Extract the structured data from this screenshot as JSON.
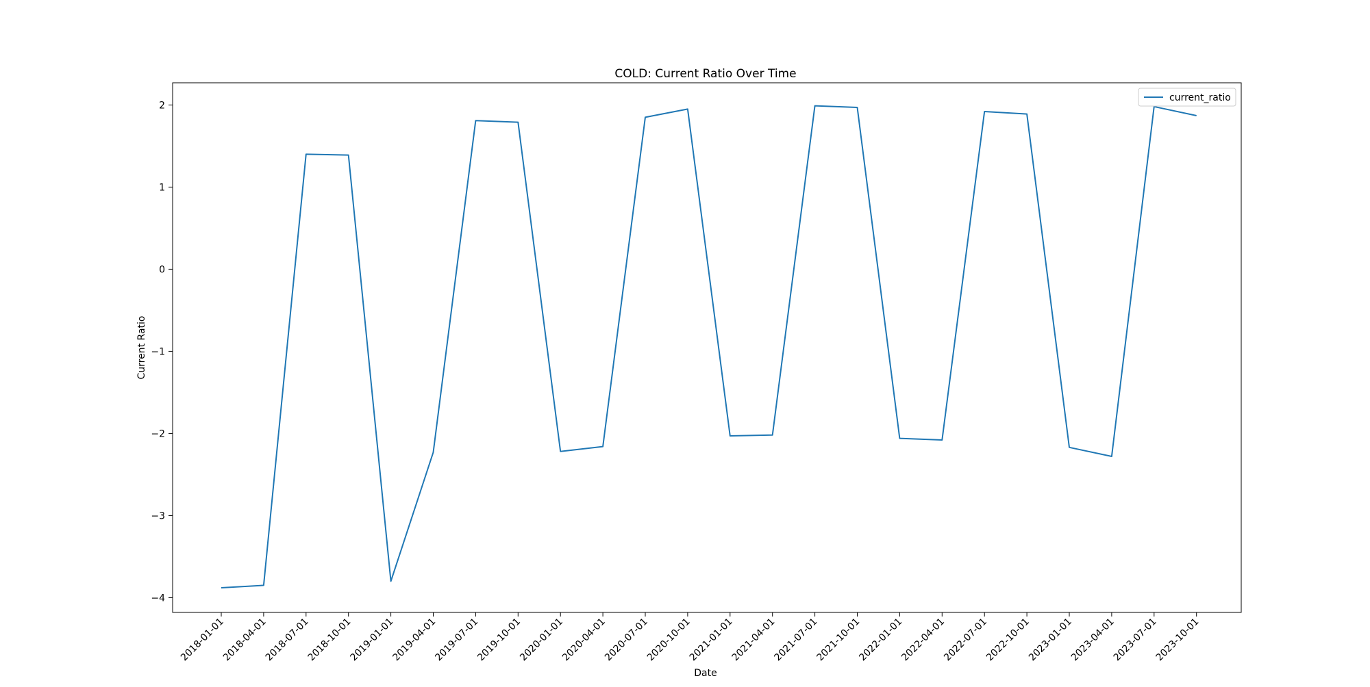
{
  "chart_data": {
    "type": "line",
    "title": "COLD: Current Ratio Over Time",
    "xlabel": "Date",
    "ylabel": "Current Ratio",
    "x": [
      "2018-01-01",
      "2018-04-01",
      "2018-07-01",
      "2018-10-01",
      "2019-01-01",
      "2019-04-01",
      "2019-07-01",
      "2019-10-01",
      "2020-01-01",
      "2020-04-01",
      "2020-07-01",
      "2020-10-01",
      "2021-01-01",
      "2021-04-01",
      "2021-07-01",
      "2021-10-01",
      "2022-01-01",
      "2022-04-01",
      "2022-07-01",
      "2022-10-01",
      "2023-01-01",
      "2023-04-01",
      "2023-07-01",
      "2023-10-01"
    ],
    "series": [
      {
        "name": "current_ratio",
        "color": "#1f77b4",
        "values": [
          -3.88,
          -3.85,
          1.4,
          1.39,
          -3.8,
          -2.23,
          1.81,
          1.79,
          -2.22,
          -2.16,
          1.85,
          1.95,
          -2.03,
          -2.02,
          1.99,
          1.97,
          -2.06,
          -2.08,
          1.92,
          1.89,
          -2.17,
          -2.28,
          1.98,
          1.87
        ]
      }
    ],
    "yticks": [
      -4,
      -3,
      -2,
      -1,
      0,
      1,
      2
    ],
    "ytick_labels": [
      "−4",
      "−3",
      "−2",
      "−1",
      "0",
      "1",
      "2"
    ],
    "ylim": [
      -4.18,
      2.27
    ],
    "grid": false,
    "legend_position": "top-right"
  }
}
